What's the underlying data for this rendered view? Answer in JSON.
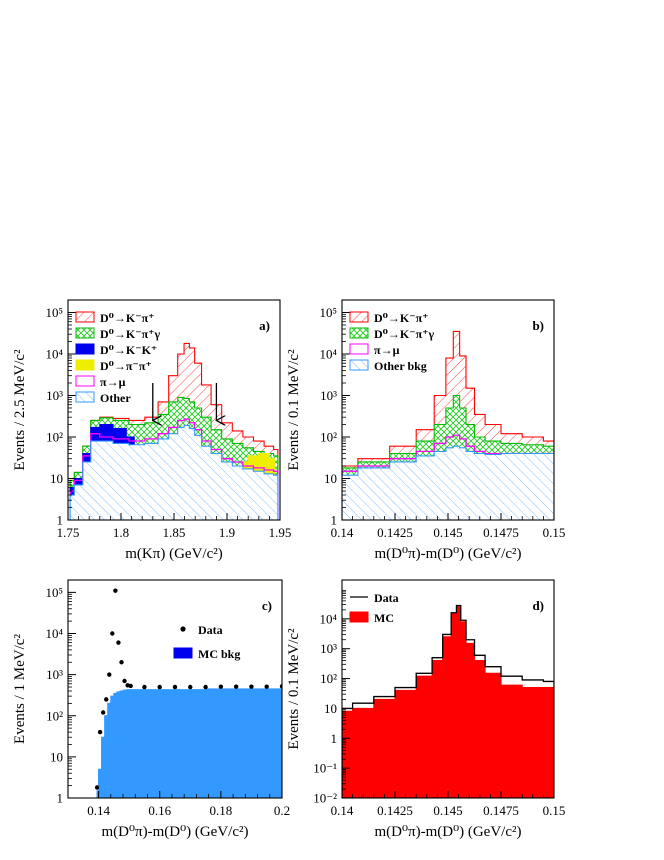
{
  "chart_data": [
    {
      "panel_label": "a)",
      "type": "histogram-stacked",
      "xlabel": "m(Kπ) (GeV/c²)",
      "ylabel": "Events / 2.5 MeV/c²",
      "xlim": [
        1.75,
        1.95
      ],
      "ylim": [
        1,
        200000
      ],
      "yscale": "log",
      "x_ticks": [
        {
          "v": 1.75,
          "label": "1.75"
        },
        {
          "v": 1.8,
          "label": "1.8"
        },
        {
          "v": 1.85,
          "label": "1.85"
        },
        {
          "v": 1.9,
          "label": "1.9"
        },
        {
          "v": 1.95,
          "label": "1.95"
        }
      ],
      "y_ticks": [
        {
          "v": 1,
          "label": "1"
        },
        {
          "v": 10,
          "label": "10"
        },
        {
          "v": 100,
          "label": "10²"
        },
        {
          "v": 1000,
          "label": "10³"
        },
        {
          "v": 10000,
          "label": "10⁴"
        },
        {
          "v": 100000,
          "label": "10⁵"
        }
      ],
      "cut_arrows": [
        1.83,
        1.89
      ],
      "legend_position": "top-left",
      "legend": [
        {
          "label": "D⁰→K⁻π⁺",
          "style": "hatch-red"
        },
        {
          "label": "D⁰→K⁻π⁺γ",
          "style": "cross-green"
        },
        {
          "label": "D⁰→K⁻K⁺",
          "style": "solid-blue"
        },
        {
          "label": "D⁰→π⁻π⁺",
          "style": "solid-yellow"
        },
        {
          "label": "π→μ",
          "style": "hollow-magenta"
        },
        {
          "label": "Other",
          "style": "hatch-lightblue"
        }
      ],
      "series": [
        {
          "name": "D⁰→K⁻π⁺",
          "color": "#ff0000",
          "fill": "hatch-red",
          "x": [
            1.752,
            1.76,
            1.768,
            1.775,
            1.785,
            1.8,
            1.815,
            1.83,
            1.84,
            1.85,
            1.857,
            1.862,
            1.867,
            1.872,
            1.88,
            1.89,
            1.9,
            1.91,
            1.92,
            1.93,
            1.94,
            1.948
          ],
          "y": [
            9,
            14,
            60,
            250,
            300,
            280,
            250,
            300,
            700,
            3000,
            10000,
            18000,
            14000,
            6000,
            1800,
            600,
            220,
            140,
            100,
            80,
            60,
            50
          ]
        },
        {
          "name": "D⁰→K⁻π⁺γ",
          "color": "#00bb00",
          "fill": "cross-green",
          "x": [
            1.752,
            1.76,
            1.768,
            1.775,
            1.785,
            1.8,
            1.815,
            1.83,
            1.84,
            1.85,
            1.857,
            1.862,
            1.867,
            1.872,
            1.88,
            1.89,
            1.9,
            1.91,
            1.92,
            1.93,
            1.94,
            1.948
          ],
          "y": [
            9,
            14,
            60,
            250,
            290,
            250,
            200,
            220,
            350,
            700,
            900,
            850,
            700,
            500,
            300,
            150,
            90,
            70,
            55,
            45,
            40,
            35
          ]
        },
        {
          "name": "D⁰→K⁻K⁺",
          "color": "#0000ee",
          "fill": "solid-blue",
          "x": [
            1.752,
            1.76,
            1.768,
            1.775,
            1.785,
            1.8,
            1.81,
            1.815
          ],
          "y": [
            6,
            10,
            40,
            170,
            200,
            160,
            100,
            60
          ]
        },
        {
          "name": "D⁰→π⁻π⁺",
          "color": "#eeee00",
          "fill": "solid-yellow",
          "x": [
            1.915,
            1.925,
            1.935,
            1.945
          ],
          "y": [
            25,
            35,
            40,
            30
          ]
        },
        {
          "name": "π→μ",
          "color": "#ff00ff",
          "fill": "none",
          "x": [
            1.752,
            1.76,
            1.768,
            1.775,
            1.785,
            1.8,
            1.815,
            1.83,
            1.84,
            1.85,
            1.857,
            1.862,
            1.867,
            1.872,
            1.88,
            1.89,
            1.9,
            1.91,
            1.92,
            1.93,
            1.94,
            1.948
          ],
          "y": [
            5,
            9,
            35,
            120,
            100,
            90,
            80,
            90,
            120,
            170,
            250,
            270,
            220,
            150,
            80,
            50,
            30,
            25,
            20,
            18,
            16,
            15
          ]
        },
        {
          "name": "Other",
          "color": "#3399ff",
          "fill": "hatch-lightblue",
          "x": [
            1.752,
            1.76,
            1.768,
            1.775,
            1.785,
            1.8,
            1.815,
            1.83,
            1.84,
            1.85,
            1.857,
            1.862,
            1.867,
            1.872,
            1.88,
            1.89,
            1.9,
            1.91,
            1.92,
            1.93,
            1.94,
            1.948
          ],
          "y": [
            4,
            7,
            25,
            80,
            80,
            70,
            65,
            70,
            90,
            120,
            170,
            190,
            160,
            110,
            60,
            40,
            25,
            20,
            17,
            15,
            13,
            12
          ]
        }
      ]
    },
    {
      "panel_label": "b)",
      "type": "histogram-stacked",
      "xlabel": "m(D⁰π)-m(D⁰) (GeV/c²)",
      "ylabel": "Events / 0.1 MeV/c²",
      "xlim": [
        0.14,
        0.15
      ],
      "ylim": [
        1,
        200000
      ],
      "yscale": "log",
      "x_ticks": [
        {
          "v": 0.14,
          "label": "0.14"
        },
        {
          "v": 0.1425,
          "label": "0.1425"
        },
        {
          "v": 0.145,
          "label": "0.145"
        },
        {
          "v": 0.1475,
          "label": "0.1475"
        },
        {
          "v": 0.15,
          "label": "0.15"
        }
      ],
      "y_ticks": [
        {
          "v": 1,
          "label": "1"
        },
        {
          "v": 10,
          "label": "10"
        },
        {
          "v": 100,
          "label": "10²"
        },
        {
          "v": 1000,
          "label": "10³"
        },
        {
          "v": 10000,
          "label": "10⁴"
        },
        {
          "v": 100000,
          "label": "10⁵"
        }
      ],
      "legend_position": "top-left",
      "legend": [
        {
          "label": "D⁰→K⁻π⁺",
          "style": "hatch-red"
        },
        {
          "label": "D⁰→K⁻π⁺γ",
          "style": "cross-green"
        },
        {
          "label": "π→μ",
          "style": "hollow-magenta"
        },
        {
          "label": "Other bkg",
          "style": "hatch-lightblue"
        }
      ],
      "series": [
        {
          "name": "D⁰→K⁻π⁺",
          "color": "#ff0000",
          "fill": "hatch-red",
          "x": [
            0.14,
            0.1415,
            0.143,
            0.144,
            0.1447,
            0.1451,
            0.1454,
            0.1457,
            0.146,
            0.1465,
            0.147,
            0.148,
            0.149,
            0.15
          ],
          "y": [
            20,
            30,
            60,
            150,
            1000,
            8000,
            35000,
            9000,
            1500,
            350,
            200,
            120,
            100,
            80
          ]
        },
        {
          "name": "D⁰→K⁻π⁺γ",
          "color": "#00bb00",
          "fill": "cross-green",
          "x": [
            0.14,
            0.1415,
            0.143,
            0.144,
            0.1447,
            0.1451,
            0.1454,
            0.1457,
            0.146,
            0.1465,
            0.147,
            0.148,
            0.149,
            0.15
          ],
          "y": [
            18,
            25,
            40,
            80,
            200,
            500,
            1000,
            500,
            200,
            100,
            80,
            70,
            65,
            60
          ]
        },
        {
          "name": "π→μ",
          "color": "#ff00ff",
          "fill": "none",
          "x": [
            0.14,
            0.1415,
            0.143,
            0.144,
            0.1447,
            0.1451,
            0.1454,
            0.1457,
            0.146,
            0.1465,
            0.147,
            0.148,
            0.149,
            0.15
          ],
          "y": [
            15,
            20,
            30,
            45,
            70,
            100,
            110,
            90,
            60,
            45,
            40,
            40,
            40,
            40
          ]
        },
        {
          "name": "Other bkg",
          "color": "#3399ff",
          "fill": "hatch-lightblue",
          "x": [
            0.14,
            0.1415,
            0.143,
            0.144,
            0.1447,
            0.1451,
            0.1454,
            0.1457,
            0.146,
            0.1465,
            0.147,
            0.148,
            0.149,
            0.15
          ],
          "y": [
            12,
            18,
            25,
            35,
            45,
            55,
            60,
            55,
            45,
            40,
            38,
            40,
            40,
            40
          ]
        }
      ]
    },
    {
      "panel_label": "c)",
      "type": "histogram-with-points",
      "xlabel": "m(D⁰π)-m(D⁰) (GeV/c²)",
      "ylabel": "Events / 1 MeV/c²",
      "xlim": [
        0.13,
        0.2
      ],
      "ylim": [
        1,
        200000
      ],
      "yscale": "log",
      "x_ticks": [
        {
          "v": 0.14,
          "label": "0.14"
        },
        {
          "v": 0.16,
          "label": "0.16"
        },
        {
          "v": 0.18,
          "label": "0.18"
        },
        {
          "v": 0.2,
          "label": "0.2"
        }
      ],
      "y_ticks": [
        {
          "v": 1,
          "label": "1"
        },
        {
          "v": 10,
          "label": "10"
        },
        {
          "v": 100,
          "label": "10²"
        },
        {
          "v": 1000,
          "label": "10³"
        },
        {
          "v": 10000,
          "label": "10⁴"
        },
        {
          "v": 100000,
          "label": "10⁵"
        }
      ],
      "legend_position": "top-right",
      "legend": [
        {
          "label": "Data",
          "style": "marker-dot"
        },
        {
          "label": "MC bkg",
          "style": "solid-blue"
        }
      ],
      "series": [
        {
          "name": "MC bkg",
          "color": "#3399ff",
          "fill": "solid",
          "x": [
            0.1395,
            0.1405,
            0.1415,
            0.1425,
            0.1435,
            0.1445,
            0.1455,
            0.1465,
            0.1475,
            0.1485,
            0.15,
            0.2
          ],
          "y": [
            1.5,
            5,
            30,
            100,
            200,
            300,
            350,
            380,
            400,
            420,
            430,
            450
          ]
        },
        {
          "name": "Data",
          "color": "#000000",
          "fill": "none",
          "x": [
            0.1395,
            0.1405,
            0.1415,
            0.1425,
            0.1435,
            0.1445,
            0.1455,
            0.1465,
            0.1475,
            0.1485,
            0.1495,
            0.1505,
            0.155,
            0.16,
            0.165,
            0.17,
            0.175,
            0.18,
            0.185,
            0.19,
            0.195,
            0.2
          ],
          "y": [
            1.8,
            40,
            120,
            250,
            1000,
            10000,
            110000,
            6000,
            2000,
            700,
            550,
            530,
            500,
            500,
            500,
            500,
            500,
            510,
            510,
            510,
            510,
            520
          ]
        }
      ]
    },
    {
      "panel_label": "d)",
      "type": "histogram-overlay",
      "xlabel": "m(D⁰π)-m(D⁰) (GeV/c²)",
      "ylabel": "Events / 0.1 MeV/c²",
      "xlim": [
        0.14,
        0.15
      ],
      "ylim": [
        0.01,
        200000
      ],
      "yscale": "log",
      "x_ticks": [
        {
          "v": 0.14,
          "label": "0.14"
        },
        {
          "v": 0.1425,
          "label": "0.1425"
        },
        {
          "v": 0.145,
          "label": "0.145"
        },
        {
          "v": 0.1475,
          "label": "0.1475"
        },
        {
          "v": 0.15,
          "label": "0.15"
        }
      ],
      "y_ticks": [
        {
          "v": 0.01,
          "label": "10⁻²"
        },
        {
          "v": 0.1,
          "label": "10⁻¹"
        },
        {
          "v": 1,
          "label": "1"
        },
        {
          "v": 10,
          "label": "10"
        },
        {
          "v": 100,
          "label": "10²"
        },
        {
          "v": 1000,
          "label": "10³"
        },
        {
          "v": 10000,
          "label": "10⁴"
        }
      ],
      "legend_position": "top-left",
      "legend": [
        {
          "label": "Data",
          "style": "line-black"
        },
        {
          "label": "MC",
          "style": "solid-red"
        }
      ],
      "series": [
        {
          "name": "MC",
          "color": "#ff0000",
          "fill": "solid",
          "x": [
            0.14,
            0.141,
            0.142,
            0.143,
            0.144,
            0.1445,
            0.145,
            0.1453,
            0.1455,
            0.1457,
            0.146,
            0.1465,
            0.147,
            0.148,
            0.149,
            0.15
          ],
          "y": [
            8,
            10,
            20,
            40,
            120,
            400,
            2500,
            15000,
            28000,
            8000,
            1500,
            400,
            150,
            60,
            50,
            50
          ]
        },
        {
          "name": "Data",
          "color": "#000000",
          "fill": "none",
          "x": [
            0.14,
            0.141,
            0.142,
            0.143,
            0.144,
            0.1445,
            0.145,
            0.1453,
            0.1455,
            0.1457,
            0.146,
            0.1465,
            0.147,
            0.148,
            0.149,
            0.15
          ],
          "y": [
            10,
            15,
            25,
            50,
            150,
            500,
            3000,
            16000,
            28000,
            9000,
            2000,
            600,
            250,
            120,
            90,
            80
          ]
        }
      ]
    }
  ]
}
